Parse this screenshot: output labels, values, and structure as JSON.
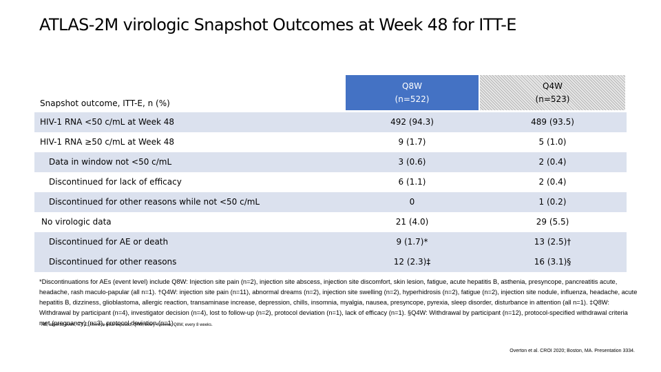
{
  "title": "ATLAS-2M virologic Snapshot Outcomes at Week 48 for ITT-E",
  "table": {
    "header_label": "Snapshot outcome, ITT-E, n (%)",
    "col_q8w": {
      "line1": "Q8W",
      "line2": "(n=522)"
    },
    "col_q4w": {
      "line1": "Q4W",
      "line2": "(n=523)"
    },
    "rows": [
      {
        "label": "HIV-1 RNA <50 c/mL at Week 48",
        "q8w": "492 (94.3)",
        "q4w": "489 (93.5)"
      },
      {
        "label": "HIV-1 RNA ≥50 c/mL at Week 48",
        "q8w": "9 (1.7)",
        "q4w": "5 (1.0)"
      },
      {
        "label": "Data in window not <50 c/mL",
        "q8w": "3 (0.6)",
        "q4w": "2 (0.4)"
      },
      {
        "label": "Discontinued for lack of efficacy",
        "q8w": "6 (1.1)",
        "q4w": "2 (0.4)"
      },
      {
        "label": "Discontinued for other reasons while not <50 c/mL",
        "q8w": "0",
        "q4w": "1 (0.2)"
      },
      {
        "label": "No virologic data",
        "q8w": "21 (4.0)",
        "q4w": "29 (5.5)"
      },
      {
        "label": "Discontinued for AE or death",
        "q8w": "9 (1.7)*",
        "q4w": "13 (2.5)†"
      },
      {
        "label": "Discontinued for other reasons",
        "q8w": "12 (2.3)‡",
        "q4w": "16 (3.1)§"
      }
    ]
  },
  "footnote": "*Discontinuations for AEs (event level) include Q8W: Injection site pain (n=2), injection site abscess, injection site discomfort, skin lesion, fatigue, acute hepatitis B, asthenia, presyncope, pancreatitis acute, headache, rash maculo-papular (all n=1). †Q4W: injection site pain (n=11), abnormal dreams (n=2), injection site swelling (n=2), hyperhidrosis (n=2), fatigue (n=2), injection site nodule, influenza, headache, acute hepatitis B, dizziness, glioblastoma, allergic reaction, transaminase increase, depression, chills, insomnia, myalgia, nausea, presyncope, pyrexia, sleep disorder, disturbance in attention (all n=1). ‡Q8W: Withdrawal by participant (n=4), investigator decision (n=4), lost to follow-up (n=2), protocol deviation (n=1), lack of efficacy (n=1). §Q4W: Withdrawal by participant (n=12), protocol-specified withdrawal criteria met (pregnancy) (n=3), protocol deviation (n=1).",
  "abbreviations": "AE, adverse event; ITT-E, intent-to-treat exposed; Q4W, every 4 weeks; Q8W, every 8 weeks.",
  "citation": "Overton et al. CROI 2020; Boston, MA. Presentation 3334."
}
